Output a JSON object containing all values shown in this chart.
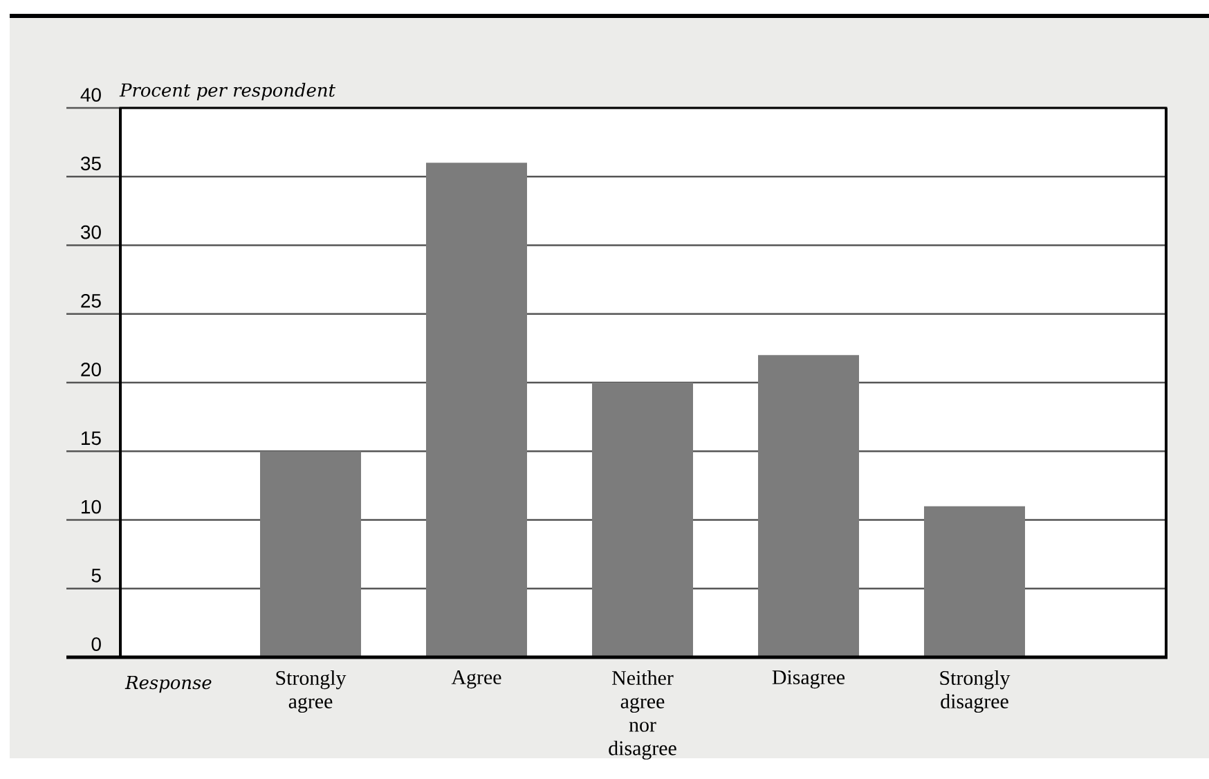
{
  "chart_data": {
    "type": "bar",
    "xlabel": "Response",
    "ylabel": "Procent per respondent",
    "categories": [
      "Strongly agree",
      "Agree",
      "Neither agree nor disagree",
      "Disagree",
      "Strongly disagree"
    ],
    "values": [
      15,
      36,
      20,
      22,
      11
    ],
    "color": "#7c7c7c",
    "ylim": [
      0,
      40
    ],
    "yticks": [
      0,
      5,
      10,
      15,
      20,
      25,
      30,
      35,
      40
    ],
    "grid": "y"
  }
}
